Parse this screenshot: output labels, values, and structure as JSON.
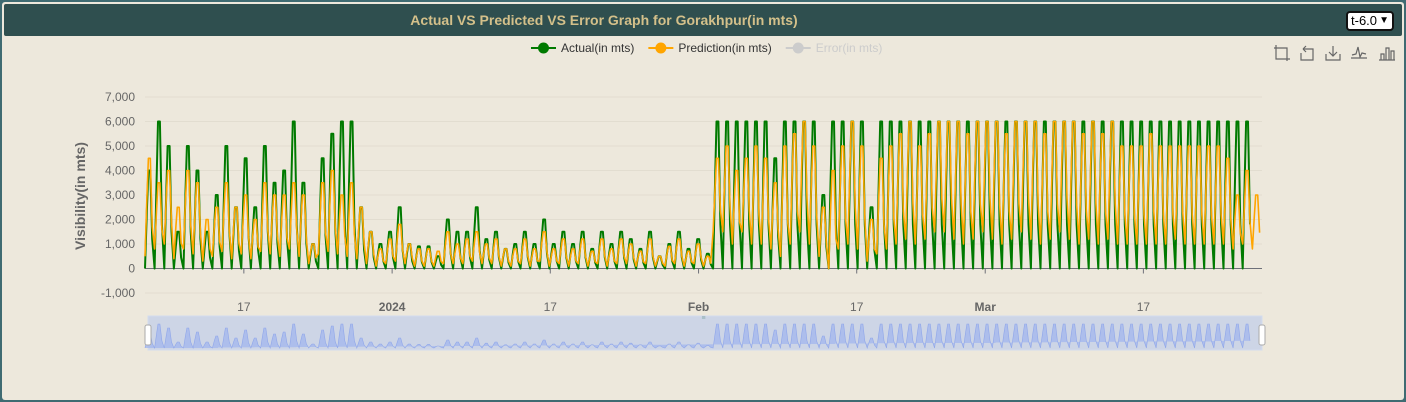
{
  "header": {
    "title": "Actual VS Predicted VS Error Graph for Gorakhpur(in mts)",
    "selector_value": "t-6.0"
  },
  "toolbar": {
    "icons": [
      "zoom-icon",
      "zoom-reset-icon",
      "download-icon",
      "line-chart-icon",
      "bar-chart-icon"
    ]
  },
  "chart_data": {
    "type": "line",
    "title": "Actual VS Predicted VS Error Graph for Gorakhpur(in mts)",
    "ylabel": "Visibility(in mts)",
    "xlabel": "",
    "ylim": [
      -1000,
      7000
    ],
    "y_ticks": [
      "7,000",
      "6,000",
      "5,000",
      "4,000",
      "3,000",
      "2,000",
      "1,000",
      "0",
      "-1,000"
    ],
    "x_range": [
      "2023-12-07",
      "2024-03-29"
    ],
    "x_ticks": [
      {
        "date": "2023-12-17",
        "label": "17",
        "bold": false
      },
      {
        "date": "2024-01-01",
        "label": "2024",
        "bold": true
      },
      {
        "date": "2024-01-17",
        "label": "17",
        "bold": false
      },
      {
        "date": "2024-02-01",
        "label": "Feb",
        "bold": true
      },
      {
        "date": "2024-02-17",
        "label": "17",
        "bold": false
      },
      {
        "date": "2024-03-01",
        "label": "Mar",
        "bold": true
      },
      {
        "date": "2024-03-17",
        "label": "17",
        "bold": false
      }
    ],
    "legend": {
      "placement": "top-center"
    },
    "grid": true,
    "data_zoom_slider": true,
    "series": [
      {
        "name": "Actual(in mts)",
        "color": "#007a00",
        "visible": true,
        "daily_peak": [
          4000,
          6000,
          5000,
          1500,
          5000,
          4000,
          1500,
          3000,
          5000,
          2500,
          4500,
          2500,
          5000,
          3500,
          4000,
          6000,
          3500,
          1000,
          4500,
          5500,
          6000,
          6000,
          2500,
          1500,
          1000,
          1500,
          2500,
          1000,
          900,
          900,
          500,
          2000,
          1500,
          1500,
          2500,
          1200,
          1500,
          800,
          1000,
          1500,
          1000,
          2000,
          1000,
          1500,
          1000,
          1500,
          800,
          1500,
          1000,
          1500,
          1200,
          800,
          1500,
          500,
          1000,
          1500,
          800,
          1200,
          600,
          6000,
          6000,
          6000,
          6000,
          6000,
          6000,
          4500,
          6000,
          6000,
          6000,
          6000,
          3000,
          6000,
          6000,
          6000,
          6000,
          2500,
          6000,
          6000,
          6000,
          6000,
          6000,
          6000,
          6000,
          6000,
          6000,
          6000,
          6000,
          6000,
          6000,
          6000,
          6000,
          6000,
          6000,
          6000,
          6000,
          6000,
          6000,
          6000,
          6000,
          6000,
          6000,
          6000,
          6000,
          6000,
          6000,
          6000,
          6000,
          6000,
          6000,
          6000,
          6000,
          6000,
          6000,
          6000,
          6000,
          6000
        ],
        "daily_min": [
          0,
          0,
          0,
          0,
          0,
          0,
          0,
          0,
          0,
          0,
          0,
          0,
          0,
          0,
          0,
          0,
          0,
          0,
          0,
          0,
          0,
          0,
          0,
          0,
          0,
          0,
          0,
          0,
          0,
          0,
          0,
          0,
          0,
          0,
          0,
          0,
          0,
          0,
          0,
          0,
          0,
          0,
          0,
          0,
          0,
          0,
          0,
          0,
          0,
          0,
          0,
          0,
          0,
          0,
          0,
          0,
          0,
          0,
          0,
          0,
          0,
          0,
          0,
          0,
          0,
          0,
          0,
          0,
          0,
          0,
          0,
          0,
          0,
          0,
          0,
          0,
          0,
          0,
          0,
          0,
          0,
          0,
          0,
          0,
          0,
          0,
          0,
          0,
          0,
          0,
          0,
          0,
          0,
          0,
          0,
          0,
          0,
          0,
          0,
          0,
          0,
          0,
          0,
          0,
          0,
          0,
          0,
          0,
          0,
          0,
          0,
          0,
          0,
          0,
          0
        ]
      },
      {
        "name": "Prediction(in mts)",
        "color": "#ffa500",
        "visible": true,
        "daily_peak": [
          4500,
          3500,
          4000,
          2500,
          4000,
          3500,
          2000,
          2500,
          3500,
          2500,
          3000,
          2000,
          3500,
          3000,
          3000,
          3500,
          3000,
          1000,
          3500,
          4000,
          3000,
          3500,
          2500,
          1500,
          800,
          1200,
          1800,
          1000,
          800,
          800,
          700,
          1500,
          1000,
          1200,
          1500,
          1000,
          1200,
          800,
          800,
          1200,
          800,
          1500,
          800,
          1200,
          800,
          1200,
          700,
          1200,
          800,
          1200,
          1000,
          700,
          1200,
          500,
          900,
          1200,
          700,
          1000,
          500,
          4500,
          5000,
          4000,
          4500,
          5000,
          4500,
          3500,
          5000,
          5500,
          6000,
          5000,
          2500,
          4000,
          5000,
          6000,
          5000,
          2000,
          4500,
          5000,
          5500,
          6000,
          5000,
          5500,
          6000,
          6000,
          6000,
          5500,
          6000,
          6000,
          6000,
          5500,
          6000,
          6000,
          6000,
          5500,
          6000,
          6000,
          6000,
          5500,
          6000,
          5500,
          6000,
          5000,
          5000,
          5000,
          5500,
          5000,
          5000,
          5000,
          5000,
          5000,
          5000,
          5000,
          4500,
          3000,
          4000,
          3000
        ],
        "daily_min": [
          500,
          800,
          1000,
          400,
          800,
          600,
          300,
          500,
          700,
          400,
          600,
          400,
          700,
          600,
          500,
          800,
          500,
          200,
          600,
          700,
          600,
          500,
          400,
          200,
          100,
          200,
          300,
          200,
          100,
          100,
          100,
          200,
          200,
          200,
          300,
          200,
          200,
          100,
          100,
          200,
          100,
          300,
          100,
          200,
          100,
          200,
          100,
          200,
          100,
          200,
          200,
          100,
          200,
          100,
          100,
          200,
          100,
          200,
          100,
          1500,
          1500,
          1000,
          1500,
          1000,
          1000,
          800,
          500,
          1000,
          1500,
          1000,
          500,
          0,
          800,
          1000,
          800,
          300,
          600,
          800,
          1000,
          1200,
          1000,
          1200,
          1500,
          1500,
          1200,
          1000,
          1200,
          1500,
          1200,
          1000,
          1200,
          1500,
          1200,
          1000,
          1200,
          1500,
          1200,
          1000,
          1200,
          1000,
          1200,
          1000,
          1000,
          1000,
          1000,
          1000,
          1000,
          1200,
          1000,
          1000,
          1000,
          1000,
          1000,
          800,
          1000,
          800
        ]
      },
      {
        "name": "Error(in mts)",
        "color": "#cccccc",
        "visible": false
      }
    ]
  }
}
